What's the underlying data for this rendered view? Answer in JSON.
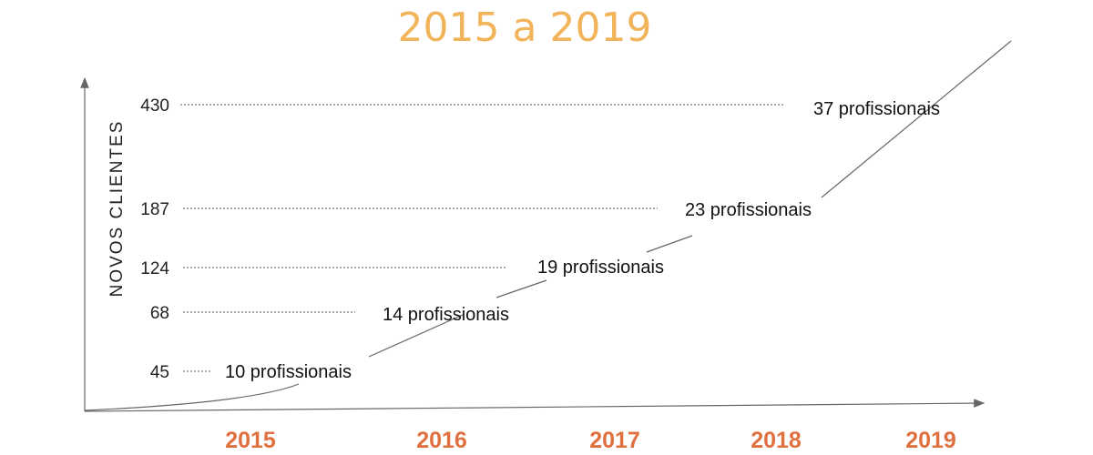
{
  "colors": {
    "title": "#f2b45a",
    "years": "#e07040",
    "text": "#222222",
    "lines": "#666666"
  },
  "chart_data": {
    "type": "line",
    "title": "2015 a 2019",
    "ylabel": "NOVOS CLIENTES",
    "xlabel": "",
    "x": [
      "2015",
      "2016",
      "2017",
      "2018",
      "2019"
    ],
    "series": [
      {
        "values": [
          45,
          68,
          124,
          187,
          430
        ]
      }
    ],
    "point_labels": [
      "10 profissionais",
      "14 profissionais",
      "19 profissionais",
      "23 profissionais",
      "37 profissionais"
    ],
    "y_ticks": [
      "45",
      "68",
      "124",
      "187",
      "430"
    ],
    "grid": false,
    "legend": "none"
  }
}
